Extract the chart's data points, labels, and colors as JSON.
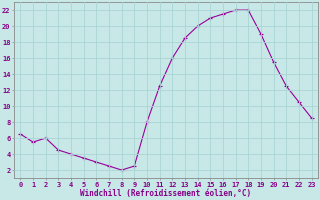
{
  "hours": [
    0,
    1,
    2,
    3,
    4,
    5,
    6,
    7,
    8,
    9,
    10,
    11,
    12,
    13,
    14,
    15,
    16,
    17,
    18,
    19,
    20,
    21,
    22,
    23
  ],
  "values": [
    6.5,
    5.5,
    6.0,
    4.5,
    4.0,
    3.5,
    3.0,
    2.5,
    2.0,
    2.5,
    8.0,
    12.5,
    16.0,
    18.5,
    20.0,
    21.0,
    21.5,
    22.0,
    22.0,
    19.0,
    15.5,
    12.5,
    10.5,
    8.5
  ],
  "line_color": "#990099",
  "marker_color": "#990099",
  "bg_color": "#c8e8e8",
  "grid_color": "#aad4d4",
  "xlabel": "Windchill (Refroidissement éolien,°C)",
  "ylim": [
    1,
    23
  ],
  "xlim": [
    -0.5,
    23.5
  ],
  "yticks": [
    2,
    4,
    6,
    8,
    10,
    12,
    14,
    16,
    18,
    20,
    22
  ],
  "xticks": [
    0,
    1,
    2,
    3,
    4,
    5,
    6,
    7,
    8,
    9,
    10,
    11,
    12,
    13,
    14,
    15,
    16,
    17,
    18,
    19,
    20,
    21,
    22,
    23
  ],
  "tick_fontsize": 5.0,
  "xlabel_fontsize": 5.5
}
